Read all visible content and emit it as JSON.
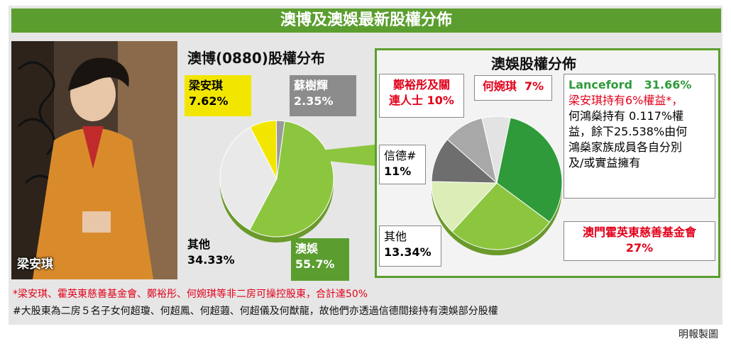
{
  "title": "澳博及澳娛最新股權分佈",
  "photo_caption": "梁安琪",
  "chart_data": [
    {
      "type": "pie",
      "title": "澳博(0880)股權分布",
      "categories": [
        "澳娛",
        "其他",
        "梁安琪",
        "蘇樹輝"
      ],
      "values": [
        55.7,
        34.33,
        7.62,
        2.35
      ],
      "labels": [
        "55.7%",
        "34.33%",
        "7.62%",
        "2.35%"
      ],
      "colors": [
        "#8cc63f",
        "#e9e9e9",
        "#f2e600",
        "#9a9a9a"
      ]
    },
    {
      "type": "pie",
      "title": "澳娛股權分佈",
      "categories": [
        "Lanceford",
        "澳門霍英東慈善基金會",
        "其他",
        "信德#",
        "鄭裕彤及關連人士",
        "何婉琪"
      ],
      "values": [
        31.66,
        27,
        13.34,
        11,
        10,
        7
      ],
      "labels": [
        "31.66%",
        "27%",
        "13.34%",
        "11%",
        "10%",
        "7%"
      ],
      "colors": [
        "#2e9a3a",
        "#8cc63f",
        "#dcedb8",
        "#6e6e6e",
        "#a8a8a8",
        "#e3e3e3"
      ]
    }
  ],
  "left_labels": {
    "liang": {
      "name": "梁安琪",
      "value": "7.62%"
    },
    "so": {
      "name": "蘇樹輝",
      "value": "2.35%"
    },
    "others": {
      "name": "其他",
      "value": "34.33%"
    },
    "stdm": {
      "name": "澳娛",
      "value": "55.7%"
    }
  },
  "right_labels": {
    "stanley": {
      "line1": "鄭裕彤及關",
      "line2": "連人士",
      "value": "10%"
    },
    "ho_yuen_ki": {
      "name": "何婉琪",
      "value": "7%"
    },
    "shun_tak": {
      "name": "信德#",
      "value": "11%"
    },
    "others": {
      "name": "其他",
      "value": "13.34%"
    },
    "fok": {
      "name": "澳門霍英東慈善基金會",
      "value": "27%"
    },
    "lanceford": {
      "name": "Lanceford",
      "value": "31.66%",
      "note_red": "梁安琪持有6%權益*，",
      "note_lines": [
        "何鴻燊持有 0.117%權",
        "益，餘下25.538%由何",
        "鴻燊家族成員各自分別",
        "及/或實益擁有"
      ]
    }
  },
  "footnotes": {
    "star": "*梁安琪、霍英東慈善基金會、鄭裕彤、何婉琪等非二房可操控股東，合計達50%",
    "hash": "#大股東為二房５名子女何超瓊、何超鳳、何超蕸、何超儀及何猷龍，故他們亦透過信德間接持有澳娛部分股權"
  },
  "credit": "明報製圖",
  "colors": {
    "accent_green": "#5b9e2f",
    "red": "#e2001a",
    "gray_label": "#8c8c8c",
    "yellow": "#f2e600"
  }
}
